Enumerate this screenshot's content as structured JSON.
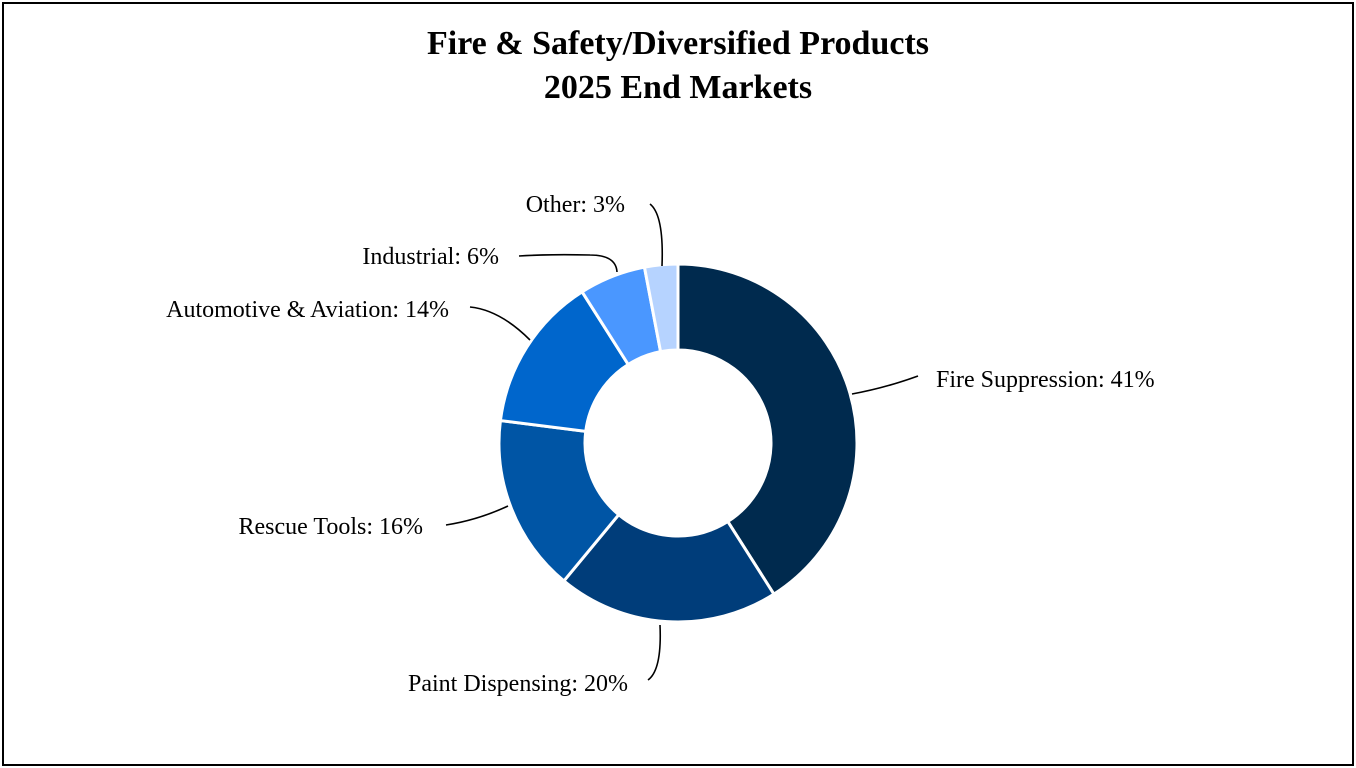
{
  "chart_data": {
    "type": "pie",
    "donut": true,
    "title_lines": [
      "Fire & Safety/Diversified Products",
      "2025 End Markets"
    ],
    "legend": "none",
    "slices": [
      {
        "label": "Fire Suppression",
        "value": 41,
        "color": "#002a4e",
        "text": "Fire Suppression: 41%"
      },
      {
        "label": "Paint Dispensing",
        "value": 20,
        "color": "#003d7a",
        "text": "Paint Dispensing: 20%"
      },
      {
        "label": "Rescue Tools",
        "value": 16,
        "color": "#0055a5",
        "text": "Rescue Tools: 16%"
      },
      {
        "label": "Automotive & Aviation",
        "value": 14,
        "color": "#0066cc",
        "text": "Automotive & Aviation: 14%"
      },
      {
        "label": "Industrial",
        "value": 6,
        "color": "#4a97ff",
        "text": "Industrial: 6%"
      },
      {
        "label": "Other",
        "value": 3,
        "color": "#b6d3ff",
        "text": "Other: 3%"
      }
    ]
  }
}
